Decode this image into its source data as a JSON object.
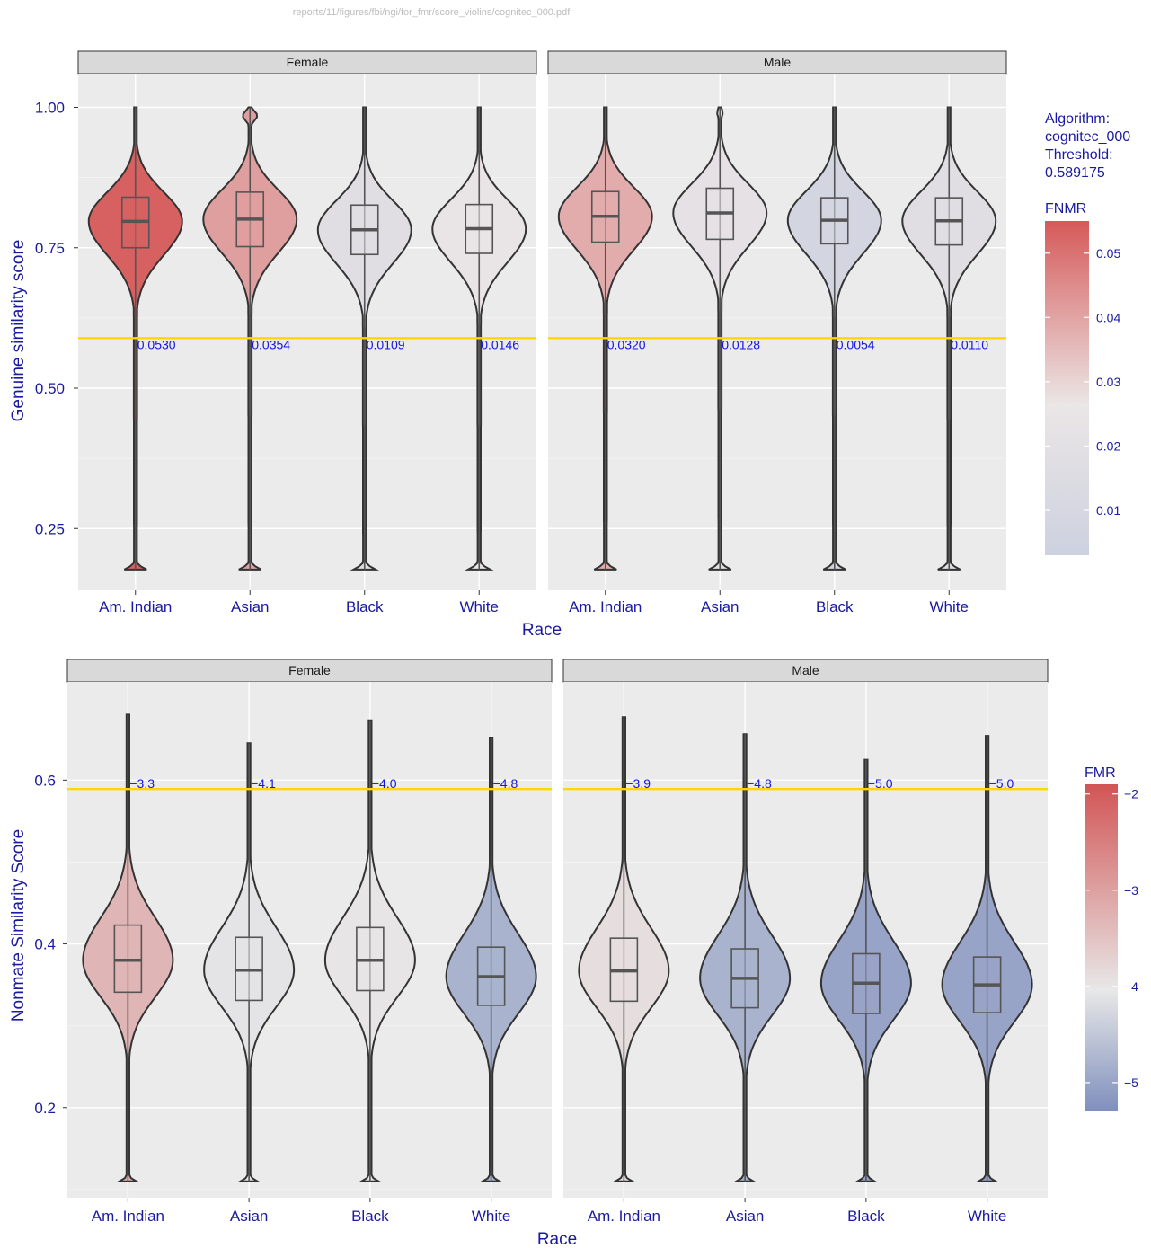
{
  "source_path": "reports/11/figures/fbi/ngi/for_fmr/score_violins/cognitec_000.pdf",
  "legend": {
    "algorithm_label": "Algorithm:",
    "algorithm_name": "cognitec_000",
    "threshold_label": "Threshold:",
    "threshold_value": "0.589175"
  },
  "chart_data": [
    {
      "type": "violin",
      "ylabel": "Genuine similarity score",
      "xlabel": "Race",
      "ylim": [
        0.14,
        1.06
      ],
      "yticks": [
        0.25,
        0.5,
        0.75,
        1.0
      ],
      "ytick_labels": [
        "0.25",
        "0.50",
        "0.75",
        "1.00"
      ],
      "threshold": 0.589175,
      "categories": [
        "Am. Indian",
        "Asian",
        "Black",
        "White"
      ],
      "panels": [
        {
          "strip": "Female",
          "groups": [
            {
              "category": "Am. Indian",
              "median": 0.797,
              "q1": 0.75,
              "q3": 0.84,
              "label": "0.0530",
              "fnmr": 0.053
            },
            {
              "category": "Asian",
              "median": 0.801,
              "q1": 0.752,
              "q3": 0.849,
              "label": "0.0354",
              "fnmr": 0.0354
            },
            {
              "category": "Black",
              "median": 0.782,
              "q1": 0.738,
              "q3": 0.826,
              "label": "0.0109",
              "fnmr": 0.0109
            },
            {
              "category": "White",
              "median": 0.784,
              "q1": 0.74,
              "q3": 0.827,
              "label": "0.0146",
              "fnmr": 0.0146
            }
          ]
        },
        {
          "strip": "Male",
          "groups": [
            {
              "category": "Am. Indian",
              "median": 0.806,
              "q1": 0.76,
              "q3": 0.85,
              "label": "0.0320",
              "fnmr": 0.032
            },
            {
              "category": "Asian",
              "median": 0.812,
              "q1": 0.765,
              "q3": 0.856,
              "label": "0.0128",
              "fnmr": 0.0128
            },
            {
              "category": "Black",
              "median": 0.799,
              "q1": 0.757,
              "q3": 0.839,
              "label": "0.0054",
              "fnmr": 0.0054
            },
            {
              "category": "White",
              "median": 0.798,
              "q1": 0.755,
              "q3": 0.839,
              "label": "0.0110",
              "fnmr": 0.011
            }
          ]
        }
      ],
      "colorbar": {
        "title": "FNMR",
        "range": [
          0.003,
          0.055
        ],
        "ticks": [
          0.01,
          0.02,
          0.03,
          0.04,
          0.05
        ],
        "tick_labels": [
          "0.01",
          "0.02",
          "0.03",
          "0.04",
          "0.05"
        ]
      }
    },
    {
      "type": "violin",
      "ylabel": "Nonmate Similarity Score",
      "xlabel": "Race",
      "ylim": [
        0.09,
        0.72
      ],
      "yticks": [
        0.2,
        0.4,
        0.6
      ],
      "ytick_labels": [
        "0.2",
        "0.4",
        "0.6"
      ],
      "threshold": 0.589175,
      "categories": [
        "Am. Indian",
        "Asian",
        "Black",
        "White"
      ],
      "panels": [
        {
          "strip": "Female",
          "groups": [
            {
              "category": "Am. Indian",
              "median": 0.38,
              "q1": 0.341,
              "q3": 0.423,
              "max": 0.68,
              "label": "−3.3",
              "log10_fmr": -3.3
            },
            {
              "category": "Asian",
              "median": 0.368,
              "q1": 0.331,
              "q3": 0.408,
              "max": 0.645,
              "label": "−4.1",
              "log10_fmr": -4.1
            },
            {
              "category": "Black",
              "median": 0.38,
              "q1": 0.343,
              "q3": 0.42,
              "max": 0.673,
              "label": "−4.0",
              "log10_fmr": -4.0
            },
            {
              "category": "White",
              "median": 0.36,
              "q1": 0.325,
              "q3": 0.396,
              "max": 0.652,
              "label": "−4.8",
              "log10_fmr": -4.8
            }
          ]
        },
        {
          "strip": "Male",
          "groups": [
            {
              "category": "Am. Indian",
              "median": 0.367,
              "q1": 0.33,
              "q3": 0.407,
              "max": 0.677,
              "label": "−3.9",
              "log10_fmr": -3.9
            },
            {
              "category": "Asian",
              "median": 0.358,
              "q1": 0.322,
              "q3": 0.394,
              "max": 0.656,
              "label": "−4.8",
              "log10_fmr": -4.8
            },
            {
              "category": "Black",
              "median": 0.352,
              "q1": 0.315,
              "q3": 0.388,
              "max": 0.625,
              "label": "−5.0",
              "log10_fmr": -5.0
            },
            {
              "category": "White",
              "median": 0.35,
              "q1": 0.316,
              "q3": 0.384,
              "max": 0.654,
              "label": "−5.0",
              "log10_fmr": -5.0
            }
          ]
        }
      ],
      "colorbar": {
        "title": "FMR",
        "range": [
          -5.3,
          -1.9
        ],
        "ticks": [
          -2,
          -3,
          -4,
          -5
        ],
        "tick_labels": [
          "−2",
          "−3",
          "−4",
          "−5"
        ]
      }
    }
  ]
}
